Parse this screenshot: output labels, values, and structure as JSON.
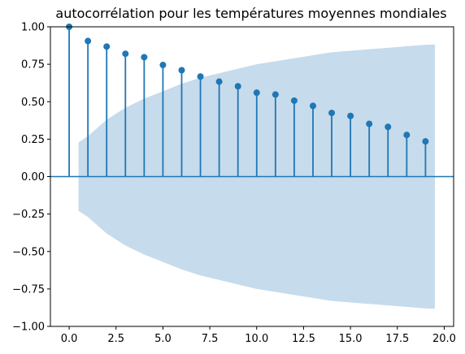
{
  "chart_data": {
    "type": "scatter",
    "title": "autocorrélation pour les températures moyennes mondiales",
    "xlabel": "",
    "ylabel": "",
    "xlim": [
      -1,
      20.5
    ],
    "ylim": [
      -1.0,
      1.0
    ],
    "grid": false,
    "x": [
      0,
      1,
      2,
      3,
      4,
      5,
      6,
      7,
      8,
      9,
      10,
      11,
      12,
      13,
      14,
      15,
      16,
      17,
      18,
      19
    ],
    "values": [
      1.0,
      0.905,
      0.868,
      0.82,
      0.797,
      0.745,
      0.71,
      0.668,
      0.634,
      0.603,
      0.56,
      0.548,
      0.507,
      0.472,
      0.425,
      0.405,
      0.352,
      0.332,
      0.278,
      0.235
    ],
    "confidence_band": {
      "x": [
        0.5,
        1,
        2,
        3,
        4,
        5,
        6,
        7,
        8,
        9,
        10,
        11,
        12,
        13,
        14,
        15,
        16,
        17,
        18,
        19,
        19.5
      ],
      "upper": [
        0.228,
        0.27,
        0.38,
        0.46,
        0.52,
        0.57,
        0.62,
        0.66,
        0.69,
        0.72,
        0.75,
        0.77,
        0.79,
        0.81,
        0.83,
        0.84,
        0.85,
        0.86,
        0.87,
        0.88,
        0.882
      ]
    },
    "xticks": [
      "0.0",
      "2.5",
      "5.0",
      "7.5",
      "10.0",
      "12.5",
      "15.0",
      "17.5",
      "20.0"
    ],
    "xtick_values": [
      0,
      2.5,
      5,
      7.5,
      10,
      12.5,
      15,
      17.5,
      20
    ],
    "yticks": [
      "−1.00",
      "−0.75",
      "−0.50",
      "−0.25",
      "0.00",
      "0.25",
      "0.50",
      "0.75",
      "1.00"
    ],
    "ytick_values": [
      -1.0,
      -0.75,
      -0.5,
      -0.25,
      0.0,
      0.25,
      0.5,
      0.75,
      1.0
    ],
    "colors": {
      "series": "#1f77b4",
      "band": "#c6dbec",
      "axes": "#000000"
    }
  }
}
